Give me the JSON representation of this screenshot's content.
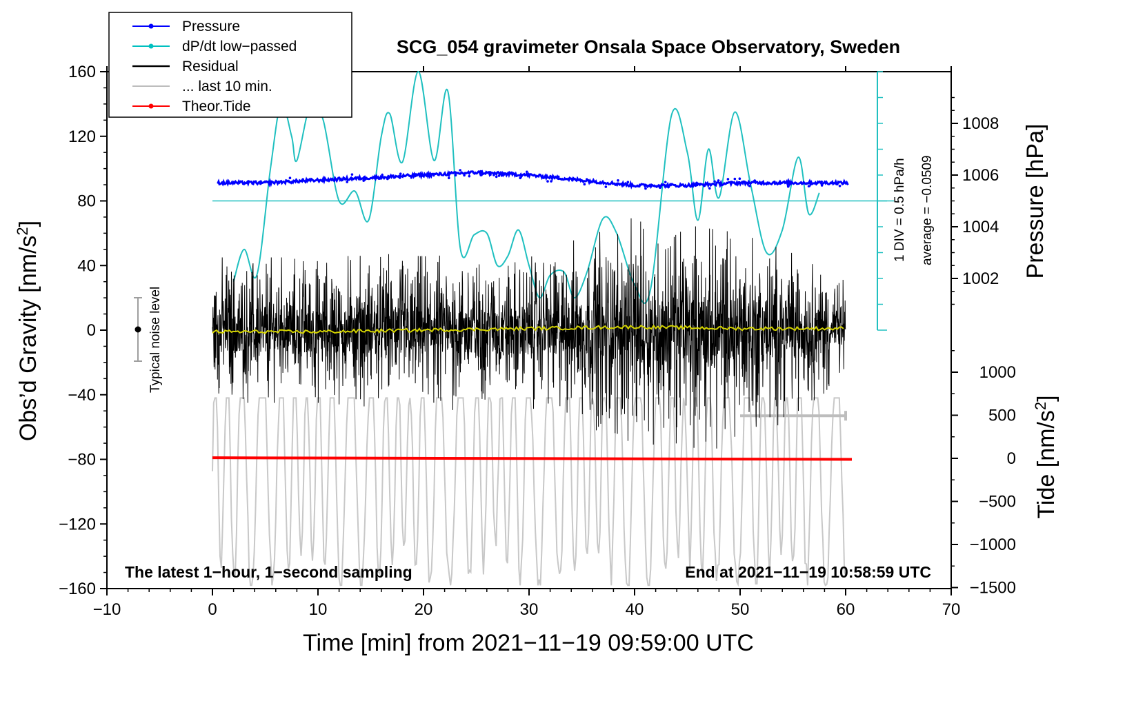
{
  "chart_data": {
    "type": "line",
    "title": "SCG_054 gravimeter Onsala Space Observatory, Sweden",
    "xlabel": "Time [min] from 2021−11−19 09:59:00 UTC",
    "xlim": [
      -10,
      70
    ],
    "xticks": [
      "−10",
      "0",
      "10",
      "20",
      "30",
      "40",
      "50",
      "60",
      "70"
    ],
    "ylabel": "Obs’d Gravity [nm/s",
    "ylabel_sup": "2",
    "ylabel_end": "]",
    "ylim": [
      -160,
      160
    ],
    "yticks": [
      "−160",
      "−120",
      "−80",
      "−40",
      "0",
      "40",
      "80",
      "120",
      "160"
    ],
    "right_axis_pressure": {
      "label": "Pressure [hPa]",
      "ticks": [
        "1002",
        "1004",
        "1006",
        "1008"
      ],
      "values": [
        1002,
        1004,
        1006,
        1008
      ]
    },
    "right_axis_tide": {
      "label": "Tide [nm/s",
      "label_sup": "2",
      "label_end": "]",
      "ticks": [
        "−1500",
        "−1000",
        "−500",
        "0",
        "500",
        "1000"
      ],
      "values": [
        -1500,
        -1000,
        -500,
        0,
        500,
        1000
      ]
    },
    "legend": [
      {
        "name": "Pressure",
        "color": "#0000ff",
        "marker": true
      },
      {
        "name": "dP/dt low−passed",
        "color": "#00c0c0",
        "marker": true
      },
      {
        "name": "Residual",
        "color": "#000000",
        "marker": false
      },
      {
        "name": "... last 10 min.",
        "color": "#bdbdbd",
        "marker": false
      },
      {
        "name": "Theor.Tide",
        "color": "#ff0000",
        "marker": true
      }
    ],
    "dpdt_scale_label": "1 DIV = 0.5 hPa/h",
    "dpdt_average_label": "average = −0.0509",
    "noise_label": "Typical noise level",
    "noise_level": 20,
    "footer_left": "The latest 1−hour, 1−second sampling",
    "footer_right": "End at 2021−11−19 10:58:59 UTC",
    "series": {
      "pressure_hpa": {
        "x": [
          0.5,
          5,
          10,
          15,
          20,
          25,
          30,
          35,
          40,
          45,
          50,
          55,
          60
        ],
        "y": [
          1005.7,
          1005.7,
          1005.8,
          1005.9,
          1006.0,
          1006.1,
          1006.0,
          1005.8,
          1005.6,
          1005.6,
          1005.7,
          1005.7,
          1005.7
        ]
      },
      "dpdt_lowpassed": {
        "x": [
          2,
          3,
          4.2,
          5.5,
          6.5,
          7.5,
          8,
          9.3,
          10.5,
          12,
          13.5,
          14.8,
          16,
          16.8,
          18,
          19.5,
          21,
          22.3,
          23.5,
          24.8,
          26,
          27,
          28,
          29,
          30,
          31,
          32,
          33.3,
          34.3,
          35.5,
          37,
          38.3,
          40,
          41.5,
          43.5,
          45,
          46,
          47,
          48,
          49.5,
          51,
          52.5,
          54,
          55.5,
          56.5,
          57.5
        ],
        "y": [
          30,
          50,
          34,
          100,
          140,
          120,
          105,
          140,
          130,
          80,
          86,
          68,
          120,
          134,
          104,
          160,
          105,
          148,
          50,
          59,
          60,
          40,
          46,
          62,
          40,
          20,
          34,
          36,
          20,
          36,
          69,
          60,
          28,
          25,
          133,
          110,
          68,
          112,
          82,
          135,
          90,
          48,
          62,
          107,
          72,
          85
        ]
      },
      "residual_envelope": {
        "x": [
          0,
          10,
          20,
          30,
          40,
          50,
          60
        ],
        "y_max": [
          45,
          45,
          48,
          45,
          70,
          60,
          35
        ],
        "y_min": [
          -45,
          -45,
          -50,
          -48,
          -70,
          -75,
          -30
        ]
      },
      "residual_smoothed": {
        "x": [
          0,
          10,
          20,
          30,
          40,
          50,
          60
        ],
        "y": [
          -1,
          -1,
          0,
          1,
          2,
          1,
          1
        ]
      },
      "last_10_min_overlay": {
        "x_start": 50,
        "x_end": 60,
        "y_min": -160,
        "y_max": -40
      },
      "theor_tide_nms2": {
        "x": [
          0,
          60
        ],
        "y": [
          -79,
          -80
        ]
      }
    }
  }
}
